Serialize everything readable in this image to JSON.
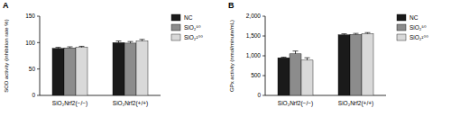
{
  "chart_data": [
    {
      "type": "bar",
      "title": "A",
      "y_label": "SOD activity (inhibition rate %)",
      "categories": [
        "SiO₂Nrf2(−/−)",
        "SiO₂Nrf2(+/+)"
      ],
      "series": [
        {
          "name": "NC",
          "color": "#1a1a1a",
          "values": [
            89,
            100
          ],
          "errors": [
            2,
            3
          ]
        },
        {
          "name": "SiO₂⁵⁰",
          "color": "#8c8c8c",
          "values": [
            90,
            99
          ],
          "errors": [
            2,
            3
          ]
        },
        {
          "name": "SiO₂¹⁰⁰",
          "color": "#d9d9d9",
          "values": [
            91,
            103
          ],
          "errors": [
            2,
            3
          ]
        }
      ],
      "ylim": [
        0,
        150
      ],
      "yticks": [
        0,
        50,
        100,
        150
      ],
      "grid": false,
      "legend": "right"
    },
    {
      "type": "bar",
      "title": "B",
      "y_label": "GPx activity (nmol/minute/mL)",
      "categories": [
        "SiO₂Nrf2(−/−)",
        "SiO₂Nrf2(+/+)"
      ],
      "series": [
        {
          "name": "NC",
          "color": "#1a1a1a",
          "values": [
            950,
            1530
          ],
          "errors": [
            15,
            25
          ]
        },
        {
          "name": "SiO₂⁵⁰",
          "color": "#8c8c8c",
          "values": [
            1050,
            1540
          ],
          "errors": [
            70,
            25
          ]
        },
        {
          "name": "SiO₂¹⁰⁰",
          "color": "#d9d9d9",
          "values": [
            890,
            1560
          ],
          "errors": [
            60,
            25
          ]
        }
      ],
      "ylim": [
        0,
        2000
      ],
      "yticks": [
        0,
        500,
        {
          "value": 1000,
          "label": "1,000"
        },
        {
          "value": 1500,
          "label": "1,500"
        },
        {
          "value": 2000,
          "label": "2,000"
        }
      ],
      "grid": false,
      "legend": "right"
    }
  ]
}
